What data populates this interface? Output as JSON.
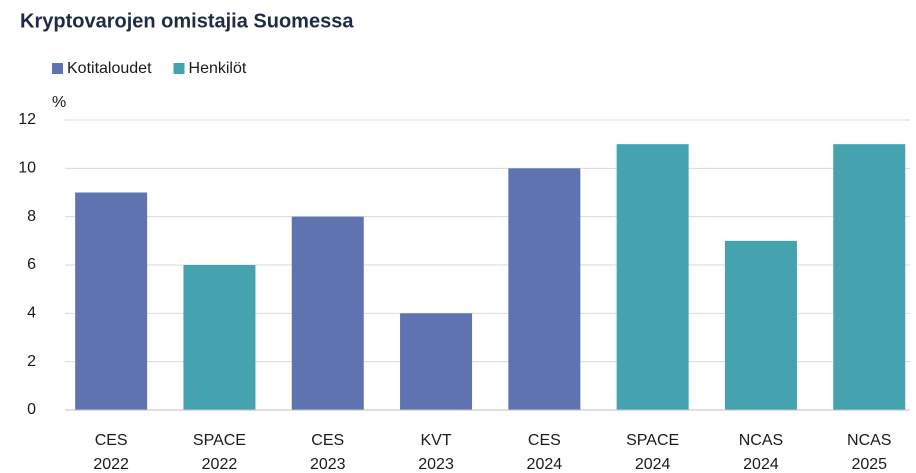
{
  "chart_data": {
    "type": "bar",
    "title": "Kryptovarojen omistajia Suomessa",
    "y_label": "%",
    "categories": [
      [
        "CES",
        "2022"
      ],
      [
        "SPACE",
        "2022"
      ],
      [
        "CES",
        "2023"
      ],
      [
        "KVT",
        "2023"
      ],
      [
        "CES",
        "2024"
      ],
      [
        "SPACE",
        "2024"
      ],
      [
        "NCAS",
        "2024"
      ],
      [
        "NCAS",
        "2025"
      ]
    ],
    "series": [
      {
        "name": "Kotitaloudet",
        "color": "#5f73b0",
        "values": [
          9,
          null,
          8,
          4,
          10,
          null,
          null,
          null
        ]
      },
      {
        "name": "Henkilöt",
        "color": "#45a3b0",
        "values": [
          null,
          6,
          null,
          null,
          null,
          11,
          7,
          11
        ]
      }
    ],
    "ylim": [
      0,
      12
    ],
    "yticks": [
      0,
      2,
      4,
      6,
      8,
      10,
      12
    ],
    "grid": true,
    "legend": "top-left"
  }
}
